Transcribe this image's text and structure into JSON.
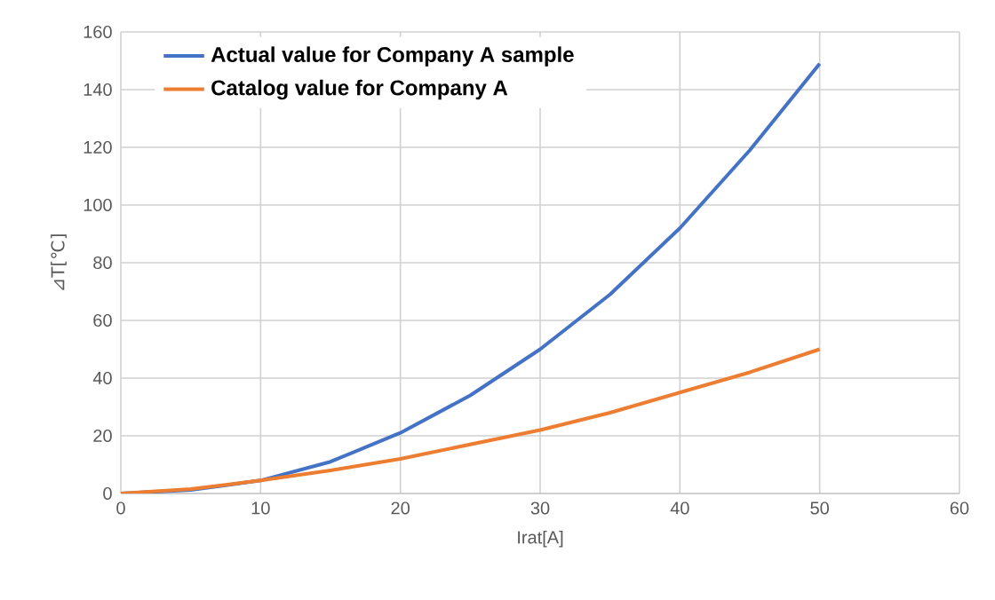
{
  "chart_data": {
    "type": "line",
    "xlabel": "Irat[A]",
    "ylabel": "⊿T[℃]",
    "x": [
      0,
      5,
      10,
      15,
      20,
      25,
      30,
      35,
      40,
      45,
      50
    ],
    "series": [
      {
        "name": "Actual value for Company A sample",
        "color": "#4472c4",
        "values": [
          0,
          1.2,
          4.5,
          11,
          21,
          34,
          50,
          69,
          92,
          119,
          149
        ]
      },
      {
        "name": "Catalog value for Company A",
        "color": "#ed7d31",
        "values": [
          0,
          1.5,
          4.5,
          8,
          12,
          17,
          22,
          28,
          35,
          42,
          50
        ]
      }
    ],
    "xlim": [
      0,
      60
    ],
    "xticks": [
      0,
      10,
      20,
      30,
      40,
      50,
      60
    ],
    "ylim": [
      0,
      160
    ],
    "yticks": [
      0,
      20,
      40,
      60,
      80,
      100,
      120,
      140,
      160
    ],
    "grid": true,
    "legend": "top left",
    "marker": "none",
    "line_style": "solid"
  }
}
